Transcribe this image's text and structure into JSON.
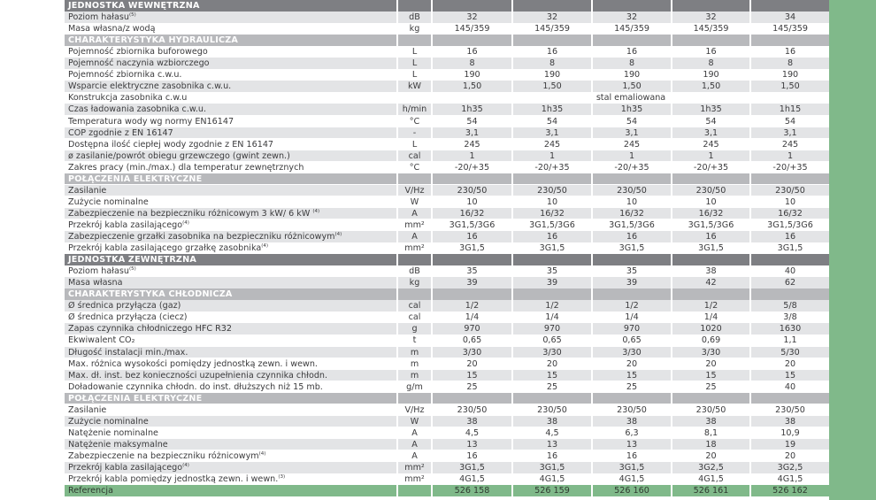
{
  "colors": {
    "main_header": "#7e7f83",
    "sub_header": "#b8b9bc",
    "stripe": "#e3e4e6",
    "reference_green": "#80b98a",
    "text": "#3b3b3d"
  },
  "rows": [
    {
      "type": "main",
      "label": "JEDNOSTKA WEWNĘTRZNA"
    },
    {
      "type": "stripe",
      "label": "Poziom hałasu",
      "sup": "(5)",
      "unit": "dB",
      "values": [
        "32",
        "32",
        "32",
        "32",
        "34"
      ]
    },
    {
      "type": "plain",
      "label": "Masa własna/z wodą",
      "unit": "kg",
      "values": [
        "145/359",
        "145/359",
        "145/359",
        "145/359",
        "145/359"
      ]
    },
    {
      "type": "sub",
      "label": "CHARAKTERYSTYKA HYDRAULICZA"
    },
    {
      "type": "plain",
      "label": "Pojemność zbiornika buforowego",
      "unit": "L",
      "values": [
        "16",
        "16",
        "16",
        "16",
        "16"
      ]
    },
    {
      "type": "stripe",
      "label": "Pojemność naczynia wzbiorczego",
      "unit": "L",
      "values": [
        "8",
        "8",
        "8",
        "8",
        "8"
      ]
    },
    {
      "type": "plain",
      "label": "Pojemność zbiornika c.w.u.",
      "unit": "L",
      "values": [
        "190",
        "190",
        "190",
        "190",
        "190"
      ]
    },
    {
      "type": "stripe",
      "label": "Wsparcie elektryczne zasobnika c.w.u.",
      "unit": "kW",
      "values": [
        "1,50",
        "1,50",
        "1,50",
        "1,50",
        "1,50"
      ]
    },
    {
      "type": "plain",
      "label": "Konstrukcja zasobnika c.w.u",
      "unit": "",
      "merged": "stal emaliowana"
    },
    {
      "type": "stripe",
      "label": "Czas ładowania zasobnika c.w.u.",
      "unit": "h/min",
      "values": [
        "1h35",
        "1h35",
        "1h35",
        "1h35",
        "1h15"
      ]
    },
    {
      "type": "plain",
      "label": "Temperatura wody wg normy EN16147",
      "unit": "°C",
      "values": [
        "54",
        "54",
        "54",
        "54",
        "54"
      ]
    },
    {
      "type": "stripe",
      "label": "COP zgodnie z EN 16147",
      "unit": "-",
      "values": [
        "3,1",
        "3,1",
        "3,1",
        "3,1",
        "3,1"
      ]
    },
    {
      "type": "plain",
      "label": "Dostępna ilość ciepłej wody zgodnie z EN 16147",
      "unit": "L",
      "values": [
        "245",
        "245",
        "245",
        "245",
        "245"
      ]
    },
    {
      "type": "stripe",
      "label": "ø zasilanie/powrót obiegu grzewczego (gwint zewn.)",
      "unit": "cal",
      "values": [
        "1",
        "1",
        "1",
        "1",
        "1"
      ]
    },
    {
      "type": "plain",
      "label": "Zakres pracy (min./max.) dla temperatur zewnętrznych",
      "unit": "°C",
      "values": [
        "-20/+35",
        "-20/+35",
        "-20/+35",
        "-20/+35",
        "-20/+35"
      ]
    },
    {
      "type": "sub",
      "label": "POŁĄCZENIA ELEKTRYCZNE"
    },
    {
      "type": "stripe",
      "label": "Zasilanie",
      "unit": "V/Hz",
      "values": [
        "230/50",
        "230/50",
        "230/50",
        "230/50",
        "230/50"
      ]
    },
    {
      "type": "plain",
      "label": "Zużycie nominalne",
      "unit": "W",
      "values": [
        "10",
        "10",
        "10",
        "10",
        "10"
      ]
    },
    {
      "type": "stripe",
      "label": "Zabezpieczenie na bezpieczniku różnicowym 3 kW/ 6 kW ",
      "sup": "(4)",
      "unit": "A",
      "values": [
        "16/32",
        "16/32",
        "16/32",
        "16/32",
        "16/32"
      ]
    },
    {
      "type": "plain",
      "label": "Przekrój kabla zasilającego",
      "sup": "(4)",
      "unit": "mm²",
      "values": [
        "3G1,5/3G6",
        "3G1,5/3G6",
        "3G1,5/3G6",
        "3G1,5/3G6",
        "3G1,5/3G6"
      ]
    },
    {
      "type": "stripe",
      "label": "Zabezpieczenie grzałki zasobnika na bezpieczniku różnicowym",
      "sup": "(4)",
      "unit": "A",
      "values": [
        "16",
        "16",
        "16",
        "16",
        "16"
      ]
    },
    {
      "type": "plain",
      "label": "Przekrój kabla zasilającego grzałkę zasobnika",
      "sup": "(4)",
      "unit": "mm²",
      "values": [
        "3G1,5",
        "3G1,5",
        "3G1,5",
        "3G1,5",
        "3G1,5"
      ]
    },
    {
      "type": "main",
      "label": "JEDNOSTKA ZEWNĘTRZNA"
    },
    {
      "type": "plain",
      "label": "Poziom hałasu",
      "sup": "(5)",
      "unit": "dB",
      "values": [
        "35",
        "35",
        "35",
        "38",
        "40"
      ]
    },
    {
      "type": "stripe",
      "label": "Masa własna",
      "unit": "kg",
      "values": [
        "39",
        "39",
        "39",
        "42",
        "62"
      ]
    },
    {
      "type": "sub",
      "label": "CHARAKTERYSTYKA CHŁODNICZA"
    },
    {
      "type": "stripe",
      "label": "Ø średnica przyłącza (gaz)",
      "unit": "cal",
      "values": [
        "1/2",
        "1/2",
        "1/2",
        "1/2",
        "5/8"
      ]
    },
    {
      "type": "plain",
      "label": "Ø średnica przyłącza (ciecz)",
      "unit": "cal",
      "values": [
        "1/4",
        "1/4",
        "1/4",
        "1/4",
        "3/8"
      ]
    },
    {
      "type": "stripe",
      "label": "Zapas czynnika chłodniczego HFC R32",
      "unit": "g",
      "values": [
        "970",
        "970",
        "970",
        "1020",
        "1630"
      ]
    },
    {
      "type": "plain",
      "label": "Ekwiwalent CO₂",
      "unit": "t",
      "values": [
        "0,65",
        "0,65",
        "0,65",
        "0,69",
        "1,1"
      ]
    },
    {
      "type": "stripe",
      "label": "Długość instalacji min./max.",
      "unit": "m",
      "values": [
        "3/30",
        "3/30",
        "3/30",
        "3/30",
        "5/30"
      ]
    },
    {
      "type": "plain",
      "label": "Max. różnica wysokości pomiędzy jednostką zewn. i wewn.",
      "unit": "m",
      "values": [
        "20",
        "20",
        "20",
        "20",
        "20"
      ]
    },
    {
      "type": "stripe",
      "label": "Max. dł. inst. bez konieczności uzupełnienia czynnika chłodn.",
      "unit": "m",
      "values": [
        "15",
        "15",
        "15",
        "15",
        "15"
      ]
    },
    {
      "type": "plain",
      "label": "Doładowanie czynnika chłodn. do inst. dłuższych niż 15 mb.",
      "unit": "g/m",
      "values": [
        "25",
        "25",
        "25",
        "25",
        "40"
      ]
    },
    {
      "type": "sub",
      "label": "POŁĄCZENIA ELEKTRYCZNE"
    },
    {
      "type": "plain",
      "label": "Zasilanie",
      "unit": "V/Hz",
      "values": [
        "230/50",
        "230/50",
        "230/50",
        "230/50",
        "230/50"
      ]
    },
    {
      "type": "stripe",
      "label": "Zużycie nominalne",
      "unit": "W",
      "values": [
        "38",
        "38",
        "38",
        "38",
        "38"
      ]
    },
    {
      "type": "plain",
      "label": "Natężenie nominalne",
      "unit": "A",
      "values": [
        "4,5",
        "4,5",
        "6,3",
        "8,1",
        "10,9"
      ]
    },
    {
      "type": "stripe",
      "label": "Natężenie maksymalne",
      "unit": "A",
      "values": [
        "13",
        "13",
        "13",
        "18",
        "19"
      ]
    },
    {
      "type": "plain",
      "label": "Zabezpieczenie na bezpieczniku różnicowym",
      "sup": "(4)",
      "unit": "A",
      "values": [
        "16",
        "16",
        "16",
        "20",
        "20"
      ]
    },
    {
      "type": "stripe",
      "label": "Przekrój kabla zasilającego",
      "sup": "(4)",
      "unit": "mm²",
      "values": [
        "3G1,5",
        "3G1,5",
        "3G1,5",
        "3G2,5",
        "3G2,5"
      ]
    },
    {
      "type": "plain",
      "label": "Przekrój kabla pomiędzy jednostką zewn. i wewn.",
      "sup": "(3)",
      "unit": "mm²",
      "values": [
        "4G1,5",
        "4G1,5",
        "4G1,5",
        "4G1,5",
        "4G1,5"
      ]
    },
    {
      "type": "ref",
      "label": "Referencja",
      "unit": "",
      "values": [
        "526 158",
        "526 159",
        "526 160",
        "526 161",
        "526 162"
      ]
    }
  ]
}
